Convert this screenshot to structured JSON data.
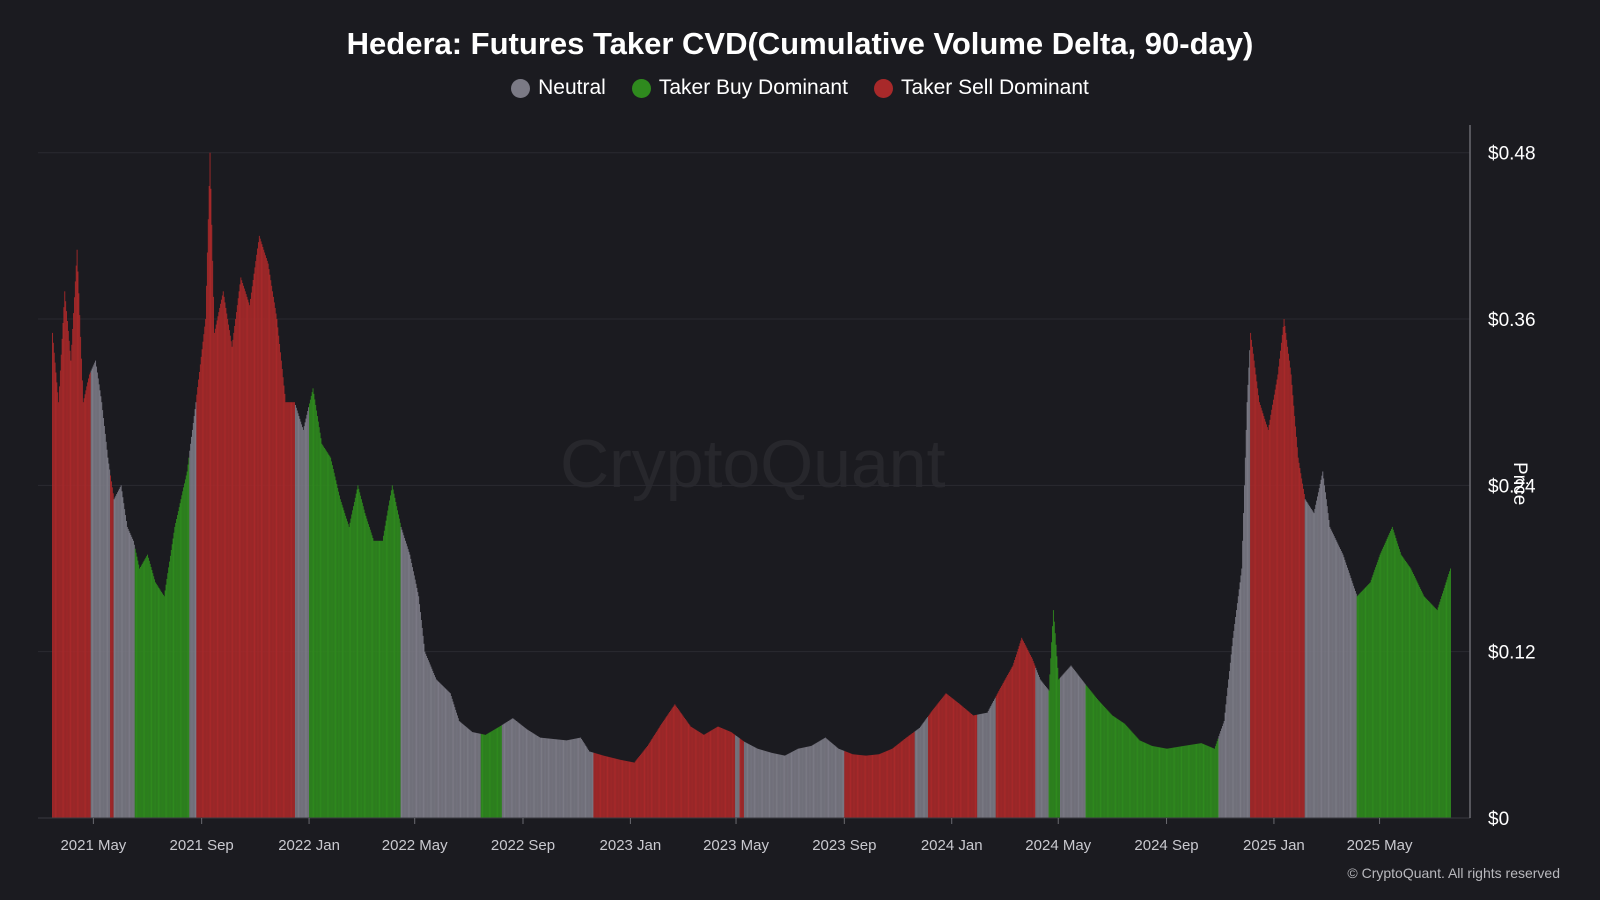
{
  "title": "Hedera: Futures Taker CVD(Cumulative Volume Delta, 90-day)",
  "legend": [
    {
      "label": "Neutral",
      "color": "#7b7a85"
    },
    {
      "label": "Taker Buy Dominant",
      "color": "#2f8a1e"
    },
    {
      "label": "Taker Sell Dominant",
      "color": "#a8292a"
    }
  ],
  "watermark": "CryptoQuant",
  "copyright": "© CryptoQuant. All rights reserved",
  "chart_data": {
    "type": "bar",
    "title": "Hedera: Futures Taker CVD(Cumulative Volume Delta, 90-day)",
    "ylabel": "Price",
    "ylim": [
      0,
      0.5
    ],
    "yticks": [
      {
        "value": 0,
        "label": "$0"
      },
      {
        "value": 0.12,
        "label": "$0.12"
      },
      {
        "value": 0.24,
        "label": "$0.24"
      },
      {
        "value": 0.36,
        "label": "$0.36"
      },
      {
        "value": 0.48,
        "label": "$0.48"
      }
    ],
    "x_start": "2021-03-15",
    "x_end": "2025-07-20",
    "xticks": [
      {
        "date": "2021-05-01",
        "label": "2021 May"
      },
      {
        "date": "2021-09-01",
        "label": "2021 Sep"
      },
      {
        "date": "2022-01-01",
        "label": "2022 Jan"
      },
      {
        "date": "2022-05-01",
        "label": "2022 May"
      },
      {
        "date": "2022-09-01",
        "label": "2022 Sep"
      },
      {
        "date": "2023-01-01",
        "label": "2023 Jan"
      },
      {
        "date": "2023-05-01",
        "label": "2023 May"
      },
      {
        "date": "2023-09-01",
        "label": "2023 Sep"
      },
      {
        "date": "2024-01-01",
        "label": "2024 Jan"
      },
      {
        "date": "2024-05-01",
        "label": "2024 May"
      },
      {
        "date": "2024-09-01",
        "label": "2024 Sep"
      },
      {
        "date": "2025-01-01",
        "label": "2025 Jan"
      },
      {
        "date": "2025-05-01",
        "label": "2025 May"
      }
    ],
    "price_points": [
      [
        "2021-03-15",
        0.35
      ],
      [
        "2021-03-22",
        0.3
      ],
      [
        "2021-03-29",
        0.38
      ],
      [
        "2021-04-05",
        0.33
      ],
      [
        "2021-04-12",
        0.41
      ],
      [
        "2021-04-19",
        0.3
      ],
      [
        "2021-04-26",
        0.32
      ],
      [
        "2021-05-03",
        0.33
      ],
      [
        "2021-05-10",
        0.3
      ],
      [
        "2021-05-17",
        0.26
      ],
      [
        "2021-05-24",
        0.23
      ],
      [
        "2021-06-01",
        0.24
      ],
      [
        "2021-06-08",
        0.21
      ],
      [
        "2021-06-15",
        0.2
      ],
      [
        "2021-06-22",
        0.18
      ],
      [
        "2021-07-01",
        0.19
      ],
      [
        "2021-07-10",
        0.17
      ],
      [
        "2021-07-20",
        0.16
      ],
      [
        "2021-08-01",
        0.21
      ],
      [
        "2021-08-15",
        0.25
      ],
      [
        "2021-08-25",
        0.3
      ],
      [
        "2021-09-05",
        0.36
      ],
      [
        "2021-09-10",
        0.48
      ],
      [
        "2021-09-15",
        0.35
      ],
      [
        "2021-09-25",
        0.38
      ],
      [
        "2021-10-05",
        0.34
      ],
      [
        "2021-10-15",
        0.39
      ],
      [
        "2021-10-25",
        0.37
      ],
      [
        "2021-11-05",
        0.42
      ],
      [
        "2021-11-15",
        0.4
      ],
      [
        "2021-11-25",
        0.36
      ],
      [
        "2021-12-05",
        0.3
      ],
      [
        "2021-12-15",
        0.3
      ],
      [
        "2021-12-25",
        0.28
      ],
      [
        "2022-01-05",
        0.31
      ],
      [
        "2022-01-15",
        0.27
      ],
      [
        "2022-01-25",
        0.26
      ],
      [
        "2022-02-05",
        0.23
      ],
      [
        "2022-02-15",
        0.21
      ],
      [
        "2022-02-25",
        0.24
      ],
      [
        "2022-03-05",
        0.22
      ],
      [
        "2022-03-15",
        0.2
      ],
      [
        "2022-03-25",
        0.2
      ],
      [
        "2022-04-05",
        0.24
      ],
      [
        "2022-04-15",
        0.21
      ],
      [
        "2022-04-25",
        0.19
      ],
      [
        "2022-05-05",
        0.16
      ],
      [
        "2022-05-12",
        0.12
      ],
      [
        "2022-05-25",
        0.1
      ],
      [
        "2022-06-10",
        0.09
      ],
      [
        "2022-06-20",
        0.07
      ],
      [
        "2022-07-05",
        0.062
      ],
      [
        "2022-07-20",
        0.06
      ],
      [
        "2022-08-05",
        0.066
      ],
      [
        "2022-08-20",
        0.072
      ],
      [
        "2022-09-05",
        0.064
      ],
      [
        "2022-09-20",
        0.058
      ],
      [
        "2022-10-05",
        0.057
      ],
      [
        "2022-10-20",
        0.056
      ],
      [
        "2022-11-05",
        0.058
      ],
      [
        "2022-11-15",
        0.048
      ],
      [
        "2022-12-01",
        0.045
      ],
      [
        "2022-12-20",
        0.042
      ],
      [
        "2023-01-05",
        0.04
      ],
      [
        "2023-01-20",
        0.052
      ],
      [
        "2023-02-05",
        0.068
      ],
      [
        "2023-02-20",
        0.082
      ],
      [
        "2023-03-10",
        0.066
      ],
      [
        "2023-03-25",
        0.06
      ],
      [
        "2023-04-10",
        0.066
      ],
      [
        "2023-04-25",
        0.062
      ],
      [
        "2023-05-10",
        0.055
      ],
      [
        "2023-05-25",
        0.05
      ],
      [
        "2023-06-10",
        0.047
      ],
      [
        "2023-06-25",
        0.045
      ],
      [
        "2023-07-10",
        0.05
      ],
      [
        "2023-07-25",
        0.052
      ],
      [
        "2023-08-10",
        0.058
      ],
      [
        "2023-08-25",
        0.05
      ],
      [
        "2023-09-10",
        0.046
      ],
      [
        "2023-09-25",
        0.045
      ],
      [
        "2023-10-10",
        0.046
      ],
      [
        "2023-10-25",
        0.05
      ],
      [
        "2023-11-10",
        0.058
      ],
      [
        "2023-11-25",
        0.065
      ],
      [
        "2023-12-10",
        0.078
      ],
      [
        "2023-12-25",
        0.09
      ],
      [
        "2024-01-10",
        0.082
      ],
      [
        "2024-01-25",
        0.074
      ],
      [
        "2024-02-10",
        0.076
      ],
      [
        "2024-02-25",
        0.094
      ],
      [
        "2024-03-10",
        0.11
      ],
      [
        "2024-03-20",
        0.13
      ],
      [
        "2024-04-01",
        0.115
      ],
      [
        "2024-04-10",
        0.1
      ],
      [
        "2024-04-20",
        0.092
      ],
      [
        "2024-04-25",
        0.15
      ],
      [
        "2024-05-01",
        0.1
      ],
      [
        "2024-05-15",
        0.11
      ],
      [
        "2024-06-01",
        0.096
      ],
      [
        "2024-06-15",
        0.085
      ],
      [
        "2024-07-01",
        0.074
      ],
      [
        "2024-07-15",
        0.068
      ],
      [
        "2024-08-01",
        0.056
      ],
      [
        "2024-08-15",
        0.052
      ],
      [
        "2024-09-01",
        0.05
      ],
      [
        "2024-09-20",
        0.052
      ],
      [
        "2024-10-10",
        0.054
      ],
      [
        "2024-10-25",
        0.05
      ],
      [
        "2024-11-05",
        0.07
      ],
      [
        "2024-11-15",
        0.13
      ],
      [
        "2024-11-25",
        0.18
      ],
      [
        "2024-12-01",
        0.3
      ],
      [
        "2024-12-05",
        0.35
      ],
      [
        "2024-12-15",
        0.3
      ],
      [
        "2024-12-25",
        0.28
      ],
      [
        "2025-01-05",
        0.32
      ],
      [
        "2025-01-12",
        0.36
      ],
      [
        "2025-01-20",
        0.32
      ],
      [
        "2025-01-28",
        0.26
      ],
      [
        "2025-02-05",
        0.23
      ],
      [
        "2025-02-15",
        0.22
      ],
      [
        "2025-02-25",
        0.25
      ],
      [
        "2025-03-05",
        0.21
      ],
      [
        "2025-03-20",
        0.19
      ],
      [
        "2025-04-05",
        0.16
      ],
      [
        "2025-04-20",
        0.17
      ],
      [
        "2025-05-01",
        0.19
      ],
      [
        "2025-05-15",
        0.21
      ],
      [
        "2025-05-25",
        0.19
      ],
      [
        "2025-06-05",
        0.18
      ],
      [
        "2025-06-20",
        0.16
      ],
      [
        "2025-07-05",
        0.15
      ],
      [
        "2025-07-20",
        0.18
      ]
    ],
    "regimes": [
      {
        "start": "2021-03-15",
        "end": "2021-04-28",
        "state": "Taker Sell Dominant"
      },
      {
        "start": "2021-04-28",
        "end": "2021-05-20",
        "state": "Neutral"
      },
      {
        "start": "2021-05-20",
        "end": "2021-05-24",
        "state": "Taker Sell Dominant"
      },
      {
        "start": "2021-05-24",
        "end": "2021-06-17",
        "state": "Neutral"
      },
      {
        "start": "2021-06-17",
        "end": "2021-08-18",
        "state": "Taker Buy Dominant"
      },
      {
        "start": "2021-08-18",
        "end": "2021-08-26",
        "state": "Neutral"
      },
      {
        "start": "2021-08-26",
        "end": "2021-12-16",
        "state": "Taker Sell Dominant"
      },
      {
        "start": "2021-12-16",
        "end": "2022-01-01",
        "state": "Neutral"
      },
      {
        "start": "2022-01-01",
        "end": "2022-04-15",
        "state": "Taker Buy Dominant"
      },
      {
        "start": "2022-04-15",
        "end": "2022-07-15",
        "state": "Neutral"
      },
      {
        "start": "2022-07-15",
        "end": "2022-08-08",
        "state": "Taker Buy Dominant"
      },
      {
        "start": "2022-08-08",
        "end": "2022-11-20",
        "state": "Neutral"
      },
      {
        "start": "2022-11-20",
        "end": "2023-04-30",
        "state": "Taker Sell Dominant"
      },
      {
        "start": "2023-04-30",
        "end": "2023-05-05",
        "state": "Neutral"
      },
      {
        "start": "2023-05-05",
        "end": "2023-05-10",
        "state": "Taker Sell Dominant"
      },
      {
        "start": "2023-05-10",
        "end": "2023-09-01",
        "state": "Neutral"
      },
      {
        "start": "2023-09-01",
        "end": "2023-11-20",
        "state": "Taker Sell Dominant"
      },
      {
        "start": "2023-11-20",
        "end": "2023-12-05",
        "state": "Neutral"
      },
      {
        "start": "2023-12-05",
        "end": "2024-01-30",
        "state": "Taker Sell Dominant"
      },
      {
        "start": "2024-01-30",
        "end": "2024-02-20",
        "state": "Neutral"
      },
      {
        "start": "2024-02-20",
        "end": "2024-04-05",
        "state": "Taker Sell Dominant"
      },
      {
        "start": "2024-04-05",
        "end": "2024-04-20",
        "state": "Neutral"
      },
      {
        "start": "2024-04-20",
        "end": "2024-05-03",
        "state": "Taker Buy Dominant"
      },
      {
        "start": "2024-05-03",
        "end": "2024-06-01",
        "state": "Neutral"
      },
      {
        "start": "2024-06-01",
        "end": "2024-10-30",
        "state": "Taker Buy Dominant"
      },
      {
        "start": "2024-10-30",
        "end": "2024-12-05",
        "state": "Neutral"
      },
      {
        "start": "2024-12-05",
        "end": "2025-02-05",
        "state": "Taker Sell Dominant"
      },
      {
        "start": "2025-02-05",
        "end": "2025-04-05",
        "state": "Neutral"
      },
      {
        "start": "2025-04-05",
        "end": "2025-07-20",
        "state": "Taker Buy Dominant"
      }
    ]
  }
}
